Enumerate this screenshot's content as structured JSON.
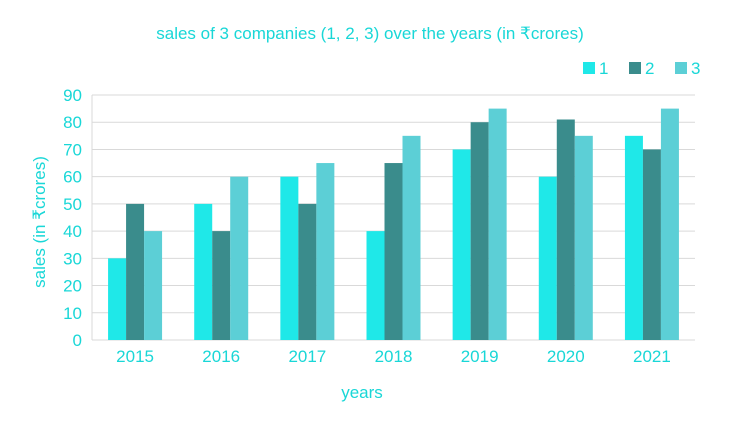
{
  "chart_data": {
    "type": "bar",
    "title": "sales of 3 companies (1, 2, 3) over the years (in ₹crores)",
    "xlabel": "years",
    "ylabel": "sales (in ₹crores)",
    "categories": [
      "2015",
      "2016",
      "2017",
      "2018",
      "2019",
      "2020",
      "2021"
    ],
    "series": [
      {
        "name": "1",
        "values": [
          30,
          50,
          60,
          40,
          70,
          60,
          75
        ],
        "color": "#1fe8e8"
      },
      {
        "name": "2",
        "values": [
          50,
          40,
          50,
          65,
          80,
          81,
          70
        ],
        "color": "#3a8c8c"
      },
      {
        "name": "3",
        "values": [
          40,
          60,
          65,
          75,
          85,
          75,
          85
        ],
        "color": "#5ccfd6"
      }
    ],
    "ylim": [
      0,
      90
    ],
    "yticks": [
      0,
      10,
      20,
      30,
      40,
      50,
      60,
      70,
      80,
      90
    ],
    "grid": true,
    "legend_position": "top-right",
    "text_color": "#19d7d7",
    "grid_color": "#d9d9d9"
  }
}
